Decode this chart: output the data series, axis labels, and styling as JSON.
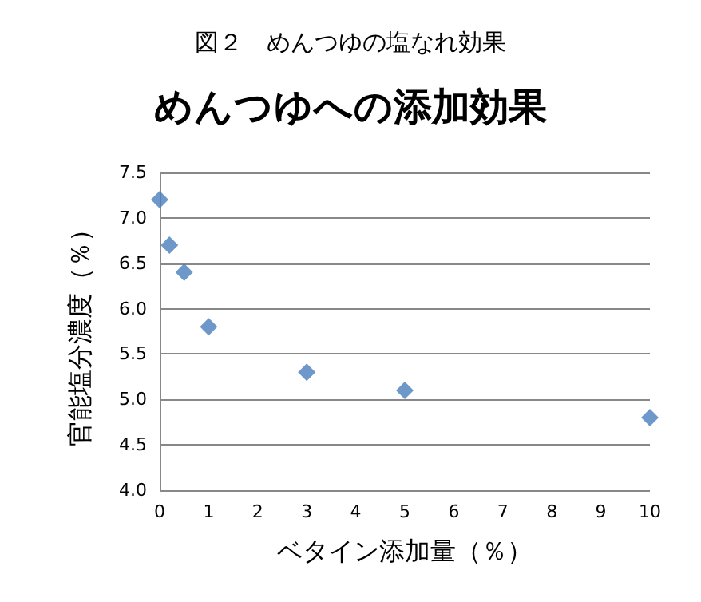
{
  "chart_data": {
    "type": "scatter",
    "title": "図２　めんつゆの塩なれ効果",
    "subtitle": "めんつゆへの添加効果",
    "xlabel": "ベタイン添加量（％）",
    "ylabel": "官能塩分濃度（％）",
    "x": [
      0,
      0.2,
      0.5,
      1,
      3,
      5,
      10
    ],
    "series": [
      {
        "color": "#4a7ebb",
        "values": [
          7.2,
          6.7,
          6.4,
          5.8,
          5.3,
          5.1,
          4.8
        ]
      }
    ],
    "xlim": [
      0,
      10
    ],
    "xticks": [
      0,
      1,
      2,
      3,
      4,
      5,
      6,
      7,
      8,
      9,
      10
    ],
    "ylim": [
      4,
      7.5
    ],
    "yticks": [
      {
        "value": 4,
        "label": "4.0"
      },
      {
        "value": 4.5,
        "label": "4.5"
      },
      {
        "value": 5,
        "label": "5.0"
      },
      {
        "value": 5.5,
        "label": "5.5"
      },
      {
        "value": 6,
        "label": "6.0"
      },
      {
        "value": 6.5,
        "label": "6.5"
      },
      {
        "value": 7,
        "label": "7.0"
      },
      {
        "value": 7.5,
        "label": "7.5"
      }
    ],
    "grid": "y",
    "marker": "diamond"
  }
}
